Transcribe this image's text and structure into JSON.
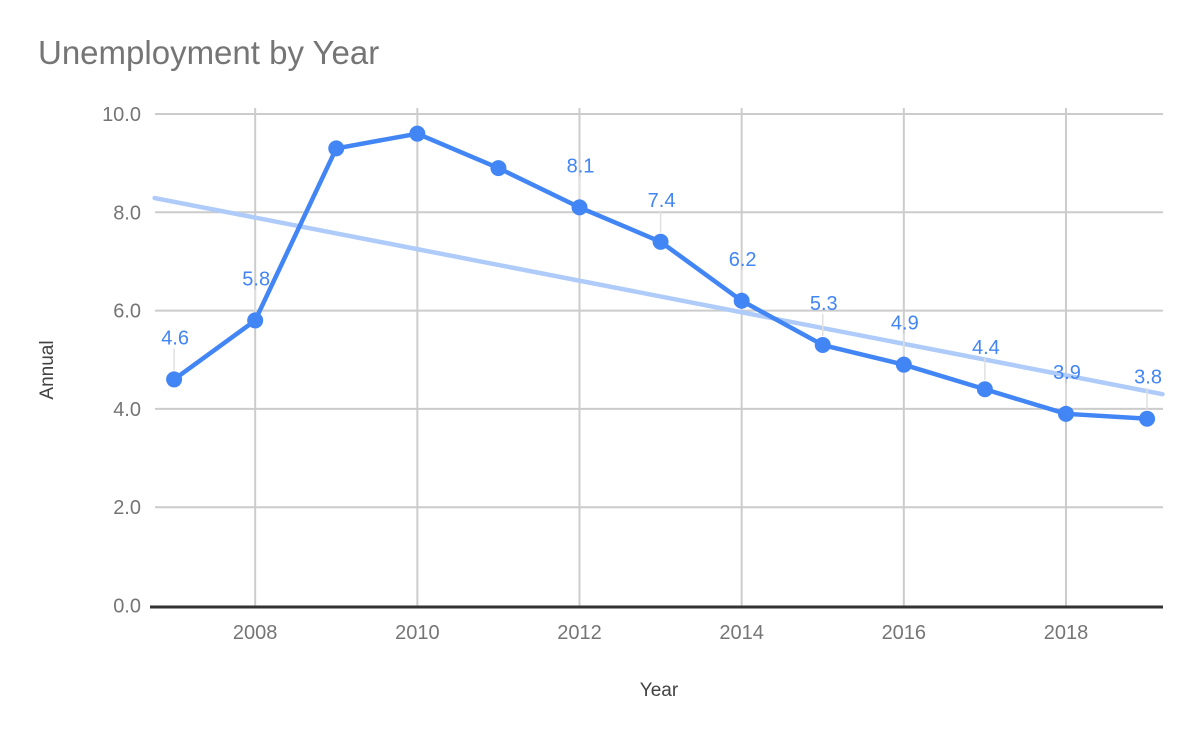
{
  "chart": {
    "title": "Unemployment by Year",
    "y_axis_title": "Annual",
    "x_axis_title": "Year"
  },
  "chart_data": {
    "type": "line",
    "title": "Unemployment by Year",
    "xlabel": "Year",
    "ylabel": "Annual",
    "x": [
      2007,
      2008,
      2009,
      2010,
      2011,
      2012,
      2013,
      2014,
      2015,
      2016,
      2017,
      2018,
      2019
    ],
    "series": [
      {
        "name": "Annual",
        "values": [
          4.6,
          5.8,
          9.3,
          9.6,
          8.9,
          8.1,
          7.4,
          6.2,
          5.3,
          4.9,
          4.4,
          3.9,
          3.8
        ],
        "data_labels": [
          "4.6",
          "5.8",
          "",
          "",
          "",
          "8.1",
          "7.4",
          "6.2",
          "5.3",
          "4.9",
          "4.4",
          "3.9",
          "3.8"
        ],
        "color": "#4285f4"
      }
    ],
    "trendline": {
      "name": "linear-trendline",
      "x_start": 2006.76,
      "y_start": 8.29,
      "x_end": 2019.19,
      "y_end": 4.3,
      "color": "#aecbfa"
    },
    "ylim": [
      0,
      10
    ],
    "yticks": [
      {
        "value": 0,
        "label": "0.0"
      },
      {
        "value": 2,
        "label": "2.0"
      },
      {
        "value": 4,
        "label": "4.0"
      },
      {
        "value": 6,
        "label": "6.0"
      },
      {
        "value": 8,
        "label": "8.0"
      },
      {
        "value": 10,
        "label": "10.0"
      }
    ],
    "xticks": [
      {
        "value": 2008,
        "label": "2008"
      },
      {
        "value": 2010,
        "label": "2010"
      },
      {
        "value": 2012,
        "label": "2012"
      },
      {
        "value": 2014,
        "label": "2014"
      },
      {
        "value": 2016,
        "label": "2016"
      },
      {
        "value": 2018,
        "label": "2018"
      }
    ],
    "grid": true,
    "legend": "none",
    "colors": {
      "series": "#4285f4",
      "trendline": "#aecbfa",
      "gridline": "#cccccc",
      "axis_line": "#333333",
      "tick_text": "#757575",
      "title_text": "#757575",
      "axis_title_text": "#424242",
      "data_label_text": "#4285f4",
      "leader_line": "#e0e0e0",
      "background": "#ffffff"
    }
  }
}
